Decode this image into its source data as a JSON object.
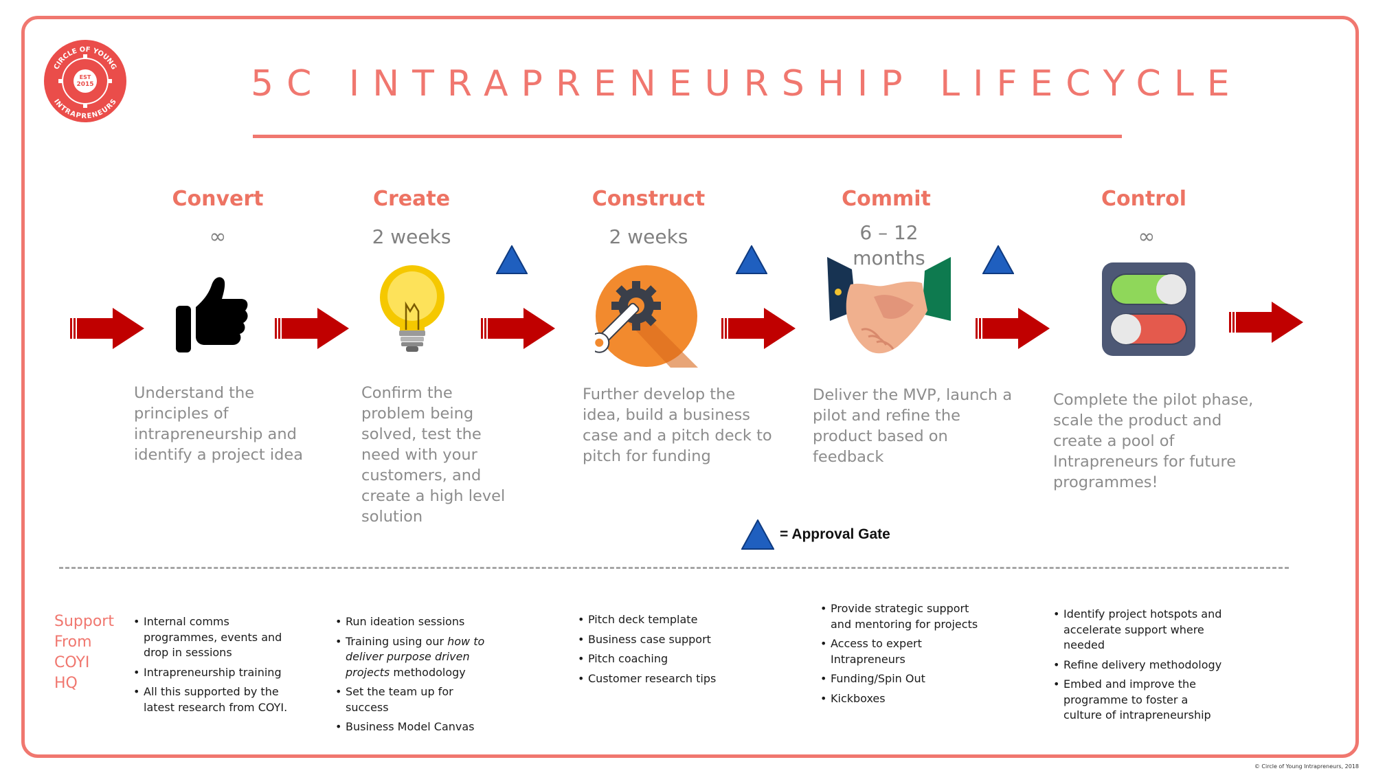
{
  "title": "5C INTRAPRENEURSHIP LIFECYCLE",
  "logo": {
    "ring_text": "CIRCLE OF YOUNG INTRAPRENEURS",
    "est": "EST",
    "year": "2015"
  },
  "colors": {
    "accent": "#f0776f",
    "arrow": "#c00000",
    "gate": "#1f5fbf",
    "stage_title": "#ed7363"
  },
  "stages": [
    {
      "name": "Convert",
      "duration": "∞",
      "icon": "thumbs-up-icon",
      "description": [
        "Understand the",
        "principles of",
        "intrapreneurship and",
        "identify a project idea"
      ]
    },
    {
      "name": "Create",
      "duration": "2 weeks",
      "icon": "lightbulb-icon",
      "description": [
        "Confirm the",
        "problem being",
        "solved, test the",
        "need with your",
        "customers, and",
        "create a high level",
        "solution"
      ]
    },
    {
      "name": "Construct",
      "duration": "2 weeks",
      "icon": "gear-wrench-icon",
      "description": [
        "Further develop the",
        "idea, build a business",
        "case and a pitch deck to",
        "pitch for funding"
      ]
    },
    {
      "name": "Commit",
      "duration": "6 – 12 months",
      "duration_lines": [
        "6 – 12",
        "months"
      ],
      "icon": "handshake-icon",
      "description": [
        "Deliver the MVP, launch a",
        "pilot and refine the",
        "product based on",
        "feedback"
      ]
    },
    {
      "name": "Control",
      "duration": "∞",
      "icon": "toggle-switches-icon",
      "description": [
        "Complete the pilot phase,",
        "scale the product and",
        "create a pool of",
        "Intrapreneurs for future",
        "programmes!"
      ]
    }
  ],
  "legend": {
    "label": "= Approval Gate",
    "icon": "approval-gate-triangle-icon"
  },
  "support": {
    "label_lines": [
      "Support",
      "From",
      "COYI",
      "HQ"
    ],
    "columns": [
      [
        [
          "Internal comms",
          "programmes, events and",
          "drop in sessions"
        ],
        [
          "Intrapreneurship training"
        ],
        [
          "All this supported by the",
          "latest research from COYI."
        ]
      ],
      [
        [
          "Run ideation sessions"
        ],
        [
          "Training using our",
          "deliver purpose driven",
          "projects",
          "methodology"
        ],
        [
          "Set the team up for",
          "success"
        ],
        [
          "Business Model Canvas"
        ]
      ],
      [
        [
          "Pitch deck template"
        ],
        [
          "Business case support"
        ],
        [
          "Pitch coaching"
        ],
        [
          "Customer research tips"
        ]
      ],
      [
        [
          "Provide strategic support",
          "and mentoring for projects"
        ],
        [
          "Access to expert",
          "Intrapreneurs"
        ],
        [
          "Funding/Spin Out"
        ],
        [
          "Kickboxes"
        ]
      ],
      [
        [
          "Identify project hotspots and",
          "accelerate support where",
          "needed"
        ],
        [
          "Refine delivery methodology"
        ],
        [
          "Embed and improve the",
          "programme to foster a",
          "culture of intrapreneurship"
        ]
      ]
    ],
    "italic_phrase": "how to"
  },
  "copyright": "© Circle of Young Intrapreneurs, 2018"
}
